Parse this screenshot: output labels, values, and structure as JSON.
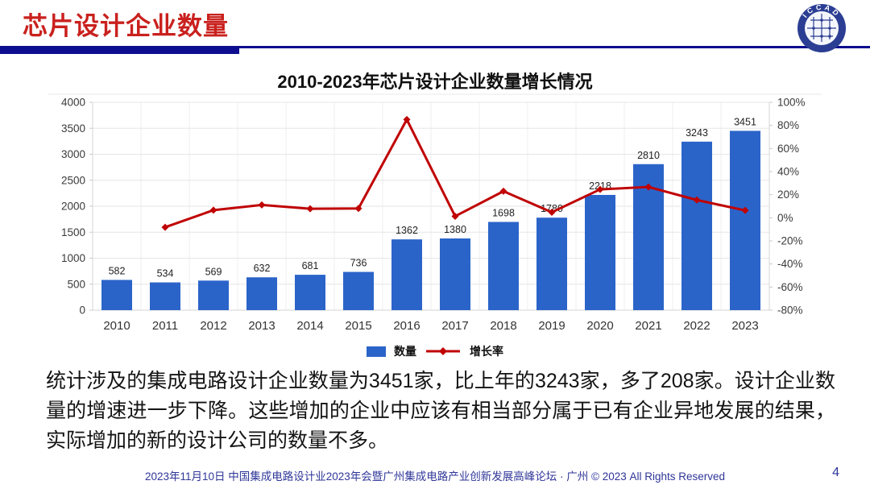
{
  "header": {
    "title": "芯片设计企业数量",
    "logo_text": "ICCAD"
  },
  "chart_data": {
    "type": "bar",
    "title": "2010-2023年芯片设计企业数量增长情况",
    "categories": [
      "2010",
      "2011",
      "2012",
      "2013",
      "2014",
      "2015",
      "2016",
      "2017",
      "2018",
      "2019",
      "2020",
      "2021",
      "2022",
      "2023"
    ],
    "series": [
      {
        "name": "数量",
        "type": "bar",
        "axis": "left",
        "color": "#2b64c9",
        "values": [
          582,
          534,
          569,
          632,
          681,
          736,
          1362,
          1380,
          1698,
          1780,
          2218,
          2810,
          3243,
          3451
        ]
      },
      {
        "name": "增长率",
        "type": "line",
        "axis": "right",
        "color": "#c00202",
        "values": [
          null,
          -8.2,
          6.6,
          11.1,
          7.8,
          8.1,
          85.1,
          1.3,
          23.0,
          4.8,
          24.6,
          26.7,
          15.4,
          6.4
        ]
      }
    ],
    "left_axis": {
      "min": 0,
      "max": 4000,
      "step": 500,
      "suffix": ""
    },
    "right_axis": {
      "min": -80,
      "max": 100,
      "step": 20,
      "suffix": "%"
    },
    "grid": true,
    "legend_position": "bottom",
    "bar_labels_shown": true
  },
  "body": {
    "paragraph": "统计涉及的集成电路设计企业数量为3451家，比上年的3243家，多了208家。设计企业数量的增速进一步下降。这些增加的企业中应该有相当部分属于已有企业异地发展的结果，实际增加的新的设计公司的数量不多。"
  },
  "footer": {
    "text": "2023年11月10日 中国集成电路设计业2023年会暨广州集成电路产业创新发展高峰论坛 · 广州 © 2023 All Rights Reserved",
    "page_number": "4"
  }
}
